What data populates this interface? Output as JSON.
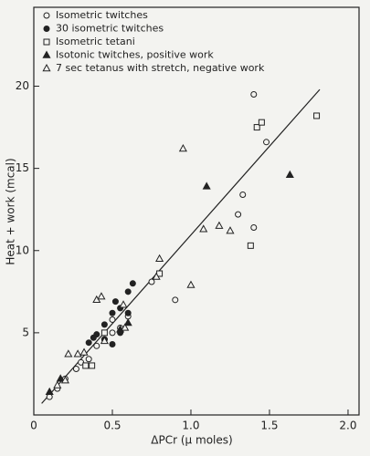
{
  "chart_data": {
    "type": "scatter",
    "xlabel": "ΔPCr (μ moles)",
    "ylabel": "Heat + work (mcal)",
    "xlim": [
      0,
      2.07
    ],
    "ylim": [
      0,
      24.8
    ],
    "xticks": [
      0,
      0.5,
      {
        "value": 1,
        "label": "1.0"
      },
      1.5,
      {
        "value": 2,
        "label": "2.0"
      }
    ],
    "yticks": [
      5,
      10,
      15,
      20
    ],
    "fit_line": {
      "x": [
        0.05,
        1.82
      ],
      "y": [
        0.7,
        19.8
      ]
    },
    "series": [
      {
        "name": "Isometric twitches",
        "marker": "circle-open",
        "color": "#222",
        "x": [
          0.1,
          0.15,
          0.2,
          0.27,
          0.3,
          0.35,
          0.4,
          0.45,
          0.5,
          0.55,
          0.6,
          0.75,
          0.9,
          1.3,
          1.33,
          1.4,
          1.4,
          1.48,
          0.5
        ],
        "y": [
          1.1,
          1.6,
          2.2,
          2.8,
          3.2,
          3.4,
          4.2,
          4.6,
          5.0,
          5.3,
          6.0,
          8.1,
          7.0,
          12.2,
          13.4,
          19.5,
          11.4,
          16.6,
          5.8
        ]
      },
      {
        "name": "30 isometric twitches",
        "marker": "circle-filled",
        "color": "#222",
        "x": [
          0.35,
          0.38,
          0.4,
          0.45,
          0.5,
          0.52,
          0.55,
          0.6,
          0.63,
          0.5,
          0.45,
          0.55,
          0.6
        ],
        "y": [
          4.4,
          4.7,
          4.9,
          5.5,
          6.2,
          6.9,
          6.5,
          7.5,
          8.0,
          4.3,
          4.6,
          5.0,
          6.2
        ]
      },
      {
        "name": "Isometric tetani",
        "marker": "square-open",
        "color": "#222",
        "x": [
          0.33,
          0.37,
          0.8,
          1.38,
          1.42,
          1.45,
          1.8,
          0.45
        ],
        "y": [
          3.0,
          3.0,
          8.6,
          10.3,
          17.5,
          17.8,
          18.2,
          5.0
        ]
      },
      {
        "name": "Isotonic twitches, positive work",
        "marker": "triangle-filled",
        "color": "#222",
        "x": [
          0.1,
          0.17,
          1.1,
          1.63,
          0.55,
          0.6
        ],
        "y": [
          1.4,
          2.2,
          13.9,
          14.6,
          5.2,
          5.6
        ]
      },
      {
        "name": "7 sec tetanus with stretch, negative work",
        "marker": "triangle-open",
        "color": "#222",
        "x": [
          0.22,
          0.28,
          0.32,
          0.4,
          0.43,
          0.57,
          0.78,
          0.8,
          0.95,
          1.0,
          1.08,
          1.18,
          1.25,
          0.15,
          0.2,
          0.58,
          0.45
        ],
        "y": [
          3.7,
          3.7,
          3.8,
          7.0,
          7.2,
          6.7,
          8.4,
          9.5,
          16.2,
          7.9,
          11.3,
          11.5,
          11.2,
          1.8,
          2.1,
          5.3,
          4.5
        ]
      }
    ]
  }
}
